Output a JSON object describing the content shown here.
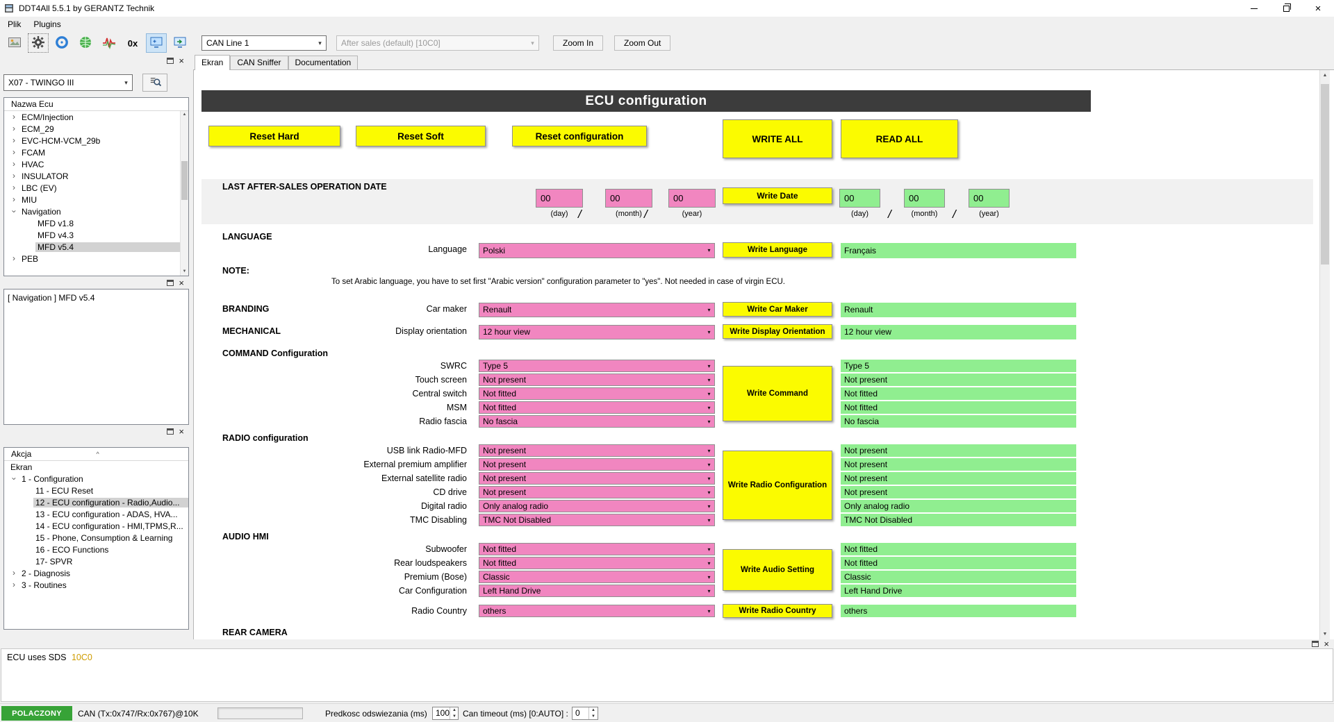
{
  "colors": {
    "write_field_pink": "#f186c0",
    "read_field_green": "#90ee90",
    "button_yellow": "#fbfb00",
    "header_dark": "#3c3c3c",
    "status_connected_green": "#37a337",
    "sds_value_orange": "#cf9c00",
    "selection_gray": "#d2d2d2"
  },
  "window": {
    "title": "DDT4All 5.5.1 by GERANTZ Technik"
  },
  "menubar": {
    "items": [
      "Plik",
      "Plugins"
    ]
  },
  "toolbar": {
    "icons": [
      {
        "name": "screenshot-icon"
      },
      {
        "name": "settings-gear-icon",
        "state": "focused"
      },
      {
        "name": "cd-blue-icon"
      },
      {
        "name": "globe-green-icon"
      },
      {
        "name": "waveform-icon"
      },
      {
        "name": "hex-0x-icon"
      },
      {
        "name": "screen-capture-icon",
        "state": "checked"
      },
      {
        "name": "screen-share-icon"
      }
    ],
    "can_line_select": "CAN Line 1",
    "after_sales_select": "After sales (default) [10C0]",
    "zoom_in_label": "Zoom In",
    "zoom_out_label": "Zoom Out"
  },
  "ecu_panel": {
    "vehicle_select": "X07 - TWINGO III",
    "tree_header": "Nazwa Ecu",
    "tree": [
      {
        "label": "ECM/Injection",
        "depth": 0,
        "expand": "collapsed"
      },
      {
        "label": "ECM_29",
        "depth": 0,
        "expand": "collapsed"
      },
      {
        "label": "EVC-HCM-VCM_29b",
        "depth": 0,
        "expand": "collapsed"
      },
      {
        "label": "FCAM",
        "depth": 0,
        "expand": "collapsed"
      },
      {
        "label": "HVAC",
        "depth": 0,
        "expand": "collapsed"
      },
      {
        "label": "INSULATOR",
        "depth": 0,
        "expand": "collapsed"
      },
      {
        "label": "LBC (EV)",
        "depth": 0,
        "expand": "collapsed"
      },
      {
        "label": "MIU",
        "depth": 0,
        "expand": "collapsed"
      },
      {
        "label": "Navigation",
        "depth": 0,
        "expand": "expanded"
      },
      {
        "label": "MFD v1.8",
        "depth": 1
      },
      {
        "label": "MFD v4.3",
        "depth": 1
      },
      {
        "label": "MFD v5.4",
        "depth": 1,
        "selected": true
      },
      {
        "label": "PEB",
        "depth": 0,
        "expand": "collapsed"
      }
    ]
  },
  "navigation_panel": {
    "items": [
      "[ Navigation ] MFD v5.4"
    ]
  },
  "action_panel": {
    "tree_header": "Akcja",
    "tree": [
      {
        "label": "Ekran",
        "depth": 0
      },
      {
        "label": "1 - Configuration",
        "depth": 0,
        "expand": "expanded"
      },
      {
        "label": "11 - ECU Reset",
        "depth": 1
      },
      {
        "label": "12 - ECU configuration - Radio,Audio...",
        "depth": 1,
        "selected": true
      },
      {
        "label": "13 - ECU configuration - ADAS, HVA...",
        "depth": 1
      },
      {
        "label": "14 - ECU configuration - HMI,TPMS,R...",
        "depth": 1
      },
      {
        "label": "15 - Phone, Consumption & Learning",
        "depth": 1
      },
      {
        "label": "16 - ECO Functions",
        "depth": 1
      },
      {
        "label": "17- SPVR",
        "depth": 1
      },
      {
        "label": "2 - Diagnosis",
        "depth": 0,
        "expand": "collapsed"
      },
      {
        "label": "3 - Routines",
        "depth": 0,
        "expand": "collapsed"
      }
    ]
  },
  "tabs": [
    {
      "label": "Ekran",
      "active": true
    },
    {
      "label": "CAN Sniffer",
      "active": false
    },
    {
      "label": "Documentation",
      "active": false
    }
  ],
  "screen": {
    "title": "ECU configuration",
    "buttons": {
      "reset_hard": "Reset Hard",
      "reset_soft": "Reset Soft",
      "reset_configuration": "Reset configuration",
      "write_all": "WRITE ALL",
      "read_all": "READ ALL"
    },
    "date_section": {
      "header": "LAST AFTER-SALES OPERATION DATE",
      "write_values": [
        "00",
        "00",
        "00"
      ],
      "read_values": [
        "00",
        "00",
        "00"
      ],
      "unit_labels": [
        "(day)",
        "(month)",
        "(year)"
      ],
      "write_button": "Write Date"
    },
    "sections": [
      {
        "id": "language",
        "header": "LANGUAGE",
        "rows": [
          {
            "label": "Language",
            "value": "Polski",
            "read": "Français"
          }
        ],
        "write": "Write Language"
      },
      {
        "id": "note",
        "header": "NOTE:",
        "text": "To set Arabic language, you have to set first \"Arabic version\" configuration parameter to \"yes\". Not needed in case of virgin ECU."
      },
      {
        "id": "branding",
        "header": "BRANDING",
        "inline": true,
        "rows": [
          {
            "label": "Car maker",
            "value": "Renault",
            "read": "Renault"
          }
        ],
        "write": "Write Car Maker"
      },
      {
        "id": "mechanical",
        "header": "MECHANICAL",
        "inline": true,
        "rows": [
          {
            "label": "Display orientation",
            "value": "12 hour view",
            "read": "12 hour view"
          }
        ],
        "write": "Write Display Orientation"
      },
      {
        "id": "command",
        "header": "COMMAND Configuration",
        "block_write": true,
        "rows": [
          {
            "label": "SWRC",
            "value": "Type 5",
            "read": "Type 5"
          },
          {
            "label": "Touch screen",
            "value": "Not present",
            "read": "Not present"
          },
          {
            "label": "Central switch",
            "value": "Not fitted",
            "read": "Not fitted"
          },
          {
            "label": "MSM",
            "value": "Not fitted",
            "read": "Not fitted"
          },
          {
            "label": "Radio fascia",
            "value": "No fascia",
            "read": "No fascia"
          }
        ],
        "write": "Write Command"
      },
      {
        "id": "radio",
        "header": "RADIO configuration",
        "block_write": true,
        "rows": [
          {
            "label": "USB link Radio-MFD",
            "value": "Not present",
            "read": "Not present"
          },
          {
            "label": "External premium amplifier",
            "value": "Not present",
            "read": "Not present"
          },
          {
            "label": "External satellite radio",
            "value": "Not present",
            "read": "Not present"
          },
          {
            "label": "CD drive",
            "value": "Not present",
            "read": "Not present"
          },
          {
            "label": "Digital radio",
            "value": "Only analog radio",
            "read": "Only analog radio"
          },
          {
            "label": "TMC Disabling",
            "value": "TMC Not Disabled",
            "read": "TMC Not Disabled"
          }
        ],
        "write": "Write Radio Configuration"
      },
      {
        "id": "audio",
        "header": "AUDIO HMI",
        "block_write": true,
        "rows": [
          {
            "label": "Subwoofer",
            "value": "Not fitted",
            "read": "Not fitted"
          },
          {
            "label": "Rear loudspeakers",
            "value": "Not fitted",
            "read": "Not fitted"
          },
          {
            "label": "Premium (Bose)",
            "value": "Classic",
            "read": "Classic"
          },
          {
            "label": "Car Configuration",
            "value": "Left Hand Drive",
            "read": "Left Hand Drive"
          }
        ],
        "write": "Write Audio Setting"
      },
      {
        "id": "country",
        "rows": [
          {
            "label": "Radio Country",
            "value": "others",
            "read": "others"
          }
        ],
        "write": "Write Radio Country"
      },
      {
        "id": "rear_camera",
        "header": "REAR CAMERA",
        "rows": []
      }
    ]
  },
  "log_panel": {
    "message": "ECU uses SDS",
    "sds_value": "10C0"
  },
  "statusbar": {
    "connection_status": "POLACZONY",
    "can_info": "CAN (Tx:0x747/Rx:0x767)@10K",
    "refresh_label": "Predkosc odswiezania (ms)",
    "refresh_value": "100",
    "timeout_label": "Can timeout (ms) [0:AUTO] :",
    "timeout_value": "0"
  }
}
